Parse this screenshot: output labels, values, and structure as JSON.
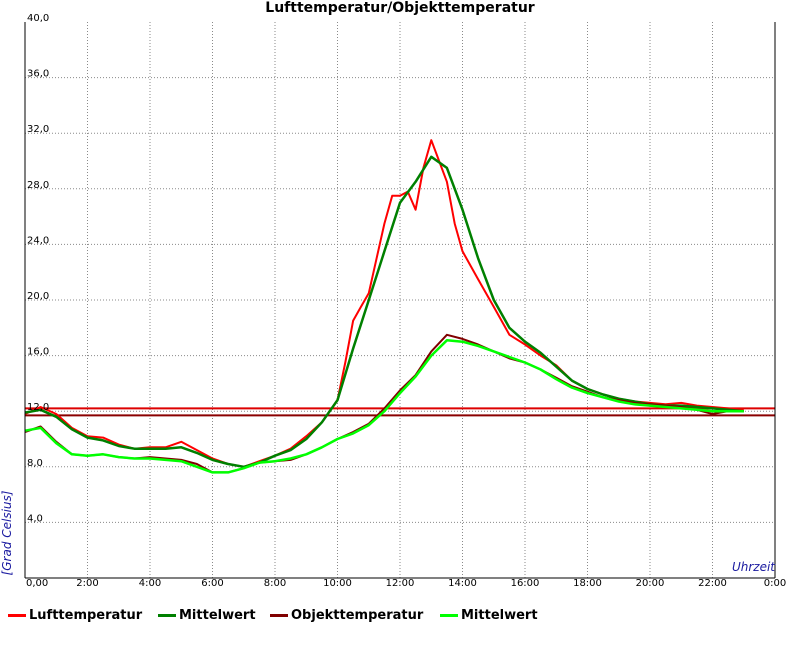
{
  "chart_data": {
    "type": "line",
    "title": "Lufttemperatur/Objekttemperatur",
    "xlabel": "Uhrzeit",
    "ylabel": "[Grad Celsius]",
    "xlim": [
      0,
      24
    ],
    "ylim": [
      0,
      40
    ],
    "x_tick_labels": [
      "0,00",
      "2:00",
      "4:00",
      "6:00",
      "8:00",
      "10:00",
      "12:00",
      "14:00",
      "16:00",
      "18:00",
      "20:00",
      "22:00",
      "0:00"
    ],
    "y_tick_values": [
      4,
      8,
      12,
      16,
      20,
      24,
      28,
      32,
      36,
      40
    ],
    "y_tick_labels": [
      "4,0",
      "8,0",
      "12,0",
      "16,0",
      "20,0",
      "24,0",
      "28,0",
      "32,0",
      "36,0",
      "40,0"
    ],
    "grid": true,
    "legend_position": "bottom",
    "series": [
      {
        "name": "Lufttemperatur",
        "color": "#ff0000",
        "x": [
          0,
          0.5,
          1.0,
          1.5,
          2.0,
          2.5,
          3.0,
          3.5,
          4.0,
          4.5,
          5.0,
          5.5,
          6.0,
          6.5,
          7.0,
          7.5,
          8.0,
          8.5,
          9.0,
          9.5,
          10.0,
          10.25,
          10.5,
          10.75,
          11.0,
          11.25,
          11.5,
          11.75,
          12.0,
          12.25,
          12.5,
          12.75,
          13.0,
          13.25,
          13.5,
          13.75,
          14.0,
          14.5,
          15.0,
          15.5,
          16.0,
          16.5,
          17.0,
          17.5,
          18.0,
          18.5,
          19.0,
          19.5,
          20.0,
          20.5,
          21.0,
          21.5,
          22.0,
          22.5,
          23.0
        ],
        "y": [
          11.8,
          12.3,
          11.8,
          10.8,
          10.2,
          10.1,
          9.6,
          9.3,
          9.4,
          9.4,
          9.8,
          9.2,
          8.6,
          8.2,
          8.0,
          8.4,
          8.8,
          9.3,
          10.2,
          11.2,
          12.8,
          15.5,
          18.5,
          19.5,
          20.5,
          23.0,
          25.5,
          27.5,
          27.5,
          27.8,
          26.5,
          29.5,
          31.5,
          30.0,
          28.5,
          25.5,
          23.5,
          21.5,
          19.5,
          17.5,
          16.8,
          16.0,
          15.3,
          14.2,
          13.6,
          13.2,
          12.9,
          12.7,
          12.6,
          12.5,
          12.6,
          12.4,
          12.3,
          12.2,
          12.1
        ]
      },
      {
        "name": "Mittelwert",
        "color": "#008000",
        "x": [
          0,
          0.5,
          1.0,
          1.5,
          2.0,
          2.5,
          3.0,
          3.5,
          4.0,
          4.5,
          5.0,
          5.5,
          6.0,
          6.5,
          7.0,
          7.5,
          8.0,
          8.5,
          9.0,
          9.5,
          10.0,
          10.5,
          11.0,
          11.5,
          12.0,
          12.5,
          13.0,
          13.5,
          14.0,
          14.5,
          15.0,
          15.5,
          16.0,
          16.5,
          17.0,
          17.5,
          18.0,
          18.5,
          19.0,
          19.5,
          20.0,
          20.5,
          21.0,
          21.5,
          22.0,
          22.5,
          23.0
        ],
        "y": [
          11.9,
          12.1,
          11.6,
          10.7,
          10.1,
          9.9,
          9.5,
          9.3,
          9.3,
          9.3,
          9.4,
          9.0,
          8.5,
          8.2,
          8.0,
          8.3,
          8.8,
          9.2,
          10.0,
          11.2,
          12.8,
          16.5,
          20.0,
          23.5,
          27.0,
          28.5,
          30.3,
          29.5,
          26.5,
          23.0,
          20.0,
          18.0,
          17.0,
          16.2,
          15.2,
          14.2,
          13.6,
          13.2,
          12.9,
          12.7,
          12.5,
          12.4,
          12.4,
          12.3,
          12.2,
          12.1,
          12.0
        ]
      },
      {
        "name": "Objekttemperatur",
        "color": "#800000",
        "x": [
          0,
          0.5,
          1.0,
          1.5,
          2.0,
          2.5,
          3.0,
          3.5,
          4.0,
          4.5,
          5.0,
          5.5,
          6.0,
          6.5,
          7.0,
          7.5,
          8.0,
          8.5,
          9.0,
          9.5,
          10.0,
          10.5,
          11.0,
          11.5,
          12.0,
          12.5,
          13.0,
          13.5,
          14.0,
          14.5,
          15.0,
          15.5,
          16.0,
          16.5,
          17.0,
          17.5,
          18.0,
          18.5,
          19.0,
          19.5,
          20.0,
          20.5,
          21.0,
          21.5,
          22.0,
          22.5,
          23.0
        ],
        "y": [
          10.5,
          10.9,
          9.8,
          8.9,
          8.8,
          8.9,
          8.7,
          8.6,
          8.7,
          8.6,
          8.5,
          8.2,
          7.6,
          7.6,
          7.9,
          8.3,
          8.4,
          8.5,
          8.9,
          9.4,
          10.0,
          10.5,
          11.1,
          12.2,
          13.5,
          14.6,
          16.3,
          17.5,
          17.2,
          16.8,
          16.3,
          15.8,
          15.5,
          15.0,
          14.4,
          13.8,
          13.4,
          13.0,
          12.8,
          12.6,
          12.5,
          12.4,
          12.3,
          12.1,
          11.8,
          12.0,
          12.0
        ]
      },
      {
        "name": "Mittelwert",
        "color": "#00ff00",
        "x": [
          0,
          0.5,
          1.0,
          1.5,
          2.0,
          2.5,
          3.0,
          3.5,
          4.0,
          4.5,
          5.0,
          5.5,
          6.0,
          6.5,
          7.0,
          7.5,
          8.0,
          8.5,
          9.0,
          9.5,
          10.0,
          10.5,
          11.0,
          11.5,
          12.0,
          12.5,
          13.0,
          13.5,
          14.0,
          14.5,
          15.0,
          15.5,
          16.0,
          16.5,
          17.0,
          17.5,
          18.0,
          18.5,
          19.0,
          19.5,
          20.0,
          20.5,
          21.0,
          21.5,
          22.0,
          22.5,
          23.0
        ],
        "y": [
          10.6,
          10.8,
          9.7,
          8.9,
          8.8,
          8.9,
          8.7,
          8.6,
          8.6,
          8.5,
          8.4,
          8.0,
          7.6,
          7.6,
          7.9,
          8.3,
          8.4,
          8.6,
          8.9,
          9.4,
          10.0,
          10.4,
          11.0,
          12.0,
          13.3,
          14.5,
          16.0,
          17.1,
          17.0,
          16.7,
          16.3,
          15.9,
          15.5,
          15.0,
          14.3,
          13.7,
          13.3,
          13.0,
          12.7,
          12.5,
          12.4,
          12.3,
          12.2,
          12.1,
          12.0,
          12.0,
          12.0
        ]
      }
    ],
    "reference_lines": [
      {
        "y": 12.2,
        "color": "#dd0000"
      },
      {
        "y": 11.7,
        "color": "#8b0000"
      }
    ]
  }
}
